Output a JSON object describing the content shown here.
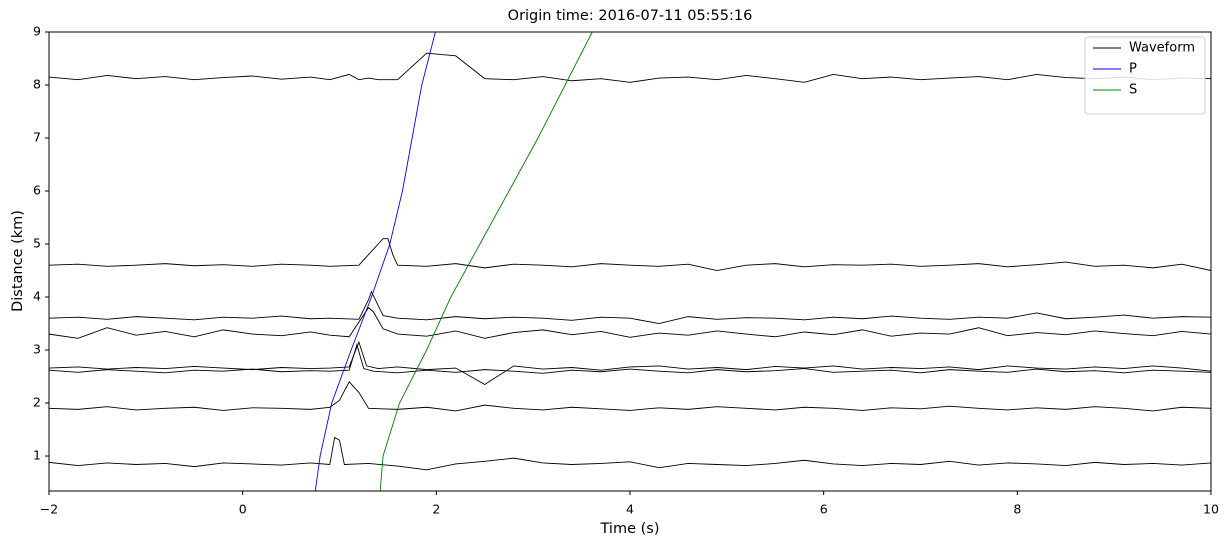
{
  "chart_data": {
    "type": "line",
    "title": "Origin time: 2016-07-11 05:55:16",
    "xlabel": "Time (s)",
    "ylabel": "Distance (km)",
    "xlim": [
      -2,
      10
    ],
    "ylim": [
      0.34,
      9
    ],
    "xticks": [
      {
        "value": -2,
        "label": "−2"
      },
      0,
      2,
      4,
      6,
      8,
      10
    ],
    "yticks": [
      1,
      2,
      3,
      4,
      5,
      6,
      7,
      8,
      9
    ],
    "grid": false,
    "legend": "upper right",
    "series": [
      {
        "name": "Waveform",
        "color": "#000000",
        "traces": [
          {
            "x": [
              -2,
              -1.7,
              -1.4,
              -1.1,
              -0.8,
              -0.5,
              -0.2,
              0.1,
              0.4,
              0.7,
              0.9,
              0.95,
              1.0,
              1.05,
              1.3,
              1.6,
              1.9,
              2.2,
              2.5,
              2.8,
              3.1,
              3.4,
              3.7,
              4.0,
              4.3,
              4.6,
              4.9,
              5.2,
              5.5,
              5.8,
              6.1,
              6.4,
              6.7,
              7.0,
              7.3,
              7.6,
              7.9,
              8.2,
              8.5,
              8.8,
              9.1,
              9.4,
              9.7,
              10
            ],
            "values": [
              0.88,
              0.82,
              0.87,
              0.84,
              0.86,
              0.8,
              0.87,
              0.85,
              0.83,
              0.87,
              0.84,
              1.35,
              1.3,
              0.84,
              0.86,
              0.81,
              0.74,
              0.85,
              0.9,
              0.96,
              0.87,
              0.84,
              0.86,
              0.89,
              0.78,
              0.86,
              0.84,
              0.82,
              0.86,
              0.92,
              0.85,
              0.82,
              0.86,
              0.84,
              0.9,
              0.83,
              0.87,
              0.85,
              0.82,
              0.88,
              0.84,
              0.86,
              0.83,
              0.87
            ]
          },
          {
            "x": [
              -2,
              -1.7,
              -1.4,
              -1.1,
              -0.8,
              -0.5,
              -0.2,
              0.1,
              0.4,
              0.7,
              0.9,
              1.0,
              1.1,
              1.2,
              1.3,
              1.6,
              1.9,
              2.2,
              2.5,
              2.8,
              3.1,
              3.4,
              3.7,
              4.0,
              4.3,
              4.6,
              4.9,
              5.2,
              5.5,
              5.8,
              6.1,
              6.4,
              6.7,
              7.0,
              7.3,
              7.6,
              7.9,
              8.2,
              8.5,
              8.8,
              9.1,
              9.4,
              9.7,
              10
            ],
            "values": [
              1.9,
              1.88,
              1.93,
              1.87,
              1.9,
              1.92,
              1.86,
              1.91,
              1.9,
              1.88,
              1.92,
              2.05,
              2.4,
              2.2,
              1.9,
              1.88,
              1.92,
              1.85,
              1.96,
              1.9,
              1.87,
              1.92,
              1.89,
              1.86,
              1.91,
              1.88,
              1.93,
              1.9,
              1.87,
              1.92,
              1.9,
              1.86,
              1.91,
              1.89,
              1.94,
              1.9,
              1.87,
              1.91,
              1.88,
              1.93,
              1.9,
              1.85,
              1.92,
              1.9
            ]
          },
          {
            "x": [
              -2,
              -1.7,
              -1.4,
              -1.1,
              -0.8,
              -0.5,
              -0.2,
              0.1,
              0.4,
              0.7,
              0.9,
              1.1,
              1.18,
              1.25,
              1.35,
              1.6,
              1.9,
              2.2,
              2.5,
              2.8,
              3.1,
              3.4,
              3.7,
              4.0,
              4.3,
              4.6,
              4.9,
              5.2,
              5.5,
              5.8,
              6.1,
              6.4,
              6.7,
              7.0,
              7.3,
              7.6,
              7.9,
              8.2,
              8.5,
              8.8,
              9.1,
              9.4,
              9.7,
              10
            ],
            "values": [
              2.62,
              2.58,
              2.63,
              2.6,
              2.57,
              2.62,
              2.6,
              2.64,
              2.59,
              2.61,
              2.6,
              2.62,
              3.1,
              2.65,
              2.6,
              2.57,
              2.62,
              2.58,
              2.63,
              2.6,
              2.56,
              2.62,
              2.59,
              2.64,
              2.6,
              2.57,
              2.63,
              2.59,
              2.61,
              2.65,
              2.58,
              2.6,
              2.62,
              2.57,
              2.63,
              2.6,
              2.58,
              2.64,
              2.59,
              2.61,
              2.57,
              2.62,
              2.6,
              2.58
            ]
          },
          {
            "x": [
              -2,
              -1.7,
              -1.4,
              -1.1,
              -0.8,
              -0.5,
              -0.2,
              0.1,
              0.4,
              0.7,
              0.9,
              1.1,
              1.2,
              1.28,
              1.4,
              1.6,
              1.9,
              2.2,
              2.5,
              2.8,
              3.1,
              3.4,
              3.7,
              4.0,
              4.3,
              4.6,
              4.9,
              5.2,
              5.5,
              5.8,
              6.1,
              6.4,
              6.7,
              7.0,
              7.3,
              7.6,
              7.9,
              8.2,
              8.5,
              8.8,
              9.1,
              9.4,
              9.7,
              10
            ],
            "values": [
              2.66,
              2.68,
              2.64,
              2.67,
              2.65,
              2.69,
              2.66,
              2.63,
              2.67,
              2.65,
              2.66,
              2.68,
              3.15,
              2.7,
              2.65,
              2.68,
              2.63,
              2.66,
              2.35,
              2.7,
              2.64,
              2.67,
              2.62,
              2.68,
              2.7,
              2.64,
              2.67,
              2.63,
              2.69,
              2.66,
              2.7,
              2.64,
              2.67,
              2.65,
              2.68,
              2.63,
              2.7,
              2.66,
              2.64,
              2.68,
              2.65,
              2.7,
              2.66,
              2.6
            ]
          },
          {
            "x": [
              -2,
              -1.7,
              -1.4,
              -1.1,
              -0.8,
              -0.5,
              -0.2,
              0.1,
              0.4,
              0.7,
              0.9,
              1.1,
              1.3,
              1.35,
              1.45,
              1.6,
              1.9,
              2.2,
              2.5,
              2.8,
              3.1,
              3.4,
              3.7,
              4.0,
              4.3,
              4.6,
              4.9,
              5.2,
              5.5,
              5.8,
              6.1,
              6.4,
              6.7,
              7.0,
              7.3,
              7.6,
              7.9,
              8.2,
              8.5,
              8.8,
              9.1,
              9.4,
              9.7,
              10
            ],
            "values": [
              3.3,
              3.22,
              3.42,
              3.28,
              3.35,
              3.25,
              3.38,
              3.3,
              3.27,
              3.34,
              3.28,
              3.25,
              3.8,
              3.72,
              3.4,
              3.3,
              3.26,
              3.36,
              3.22,
              3.33,
              3.38,
              3.29,
              3.35,
              3.24,
              3.32,
              3.28,
              3.36,
              3.3,
              3.25,
              3.34,
              3.29,
              3.38,
              3.26,
              3.32,
              3.3,
              3.42,
              3.27,
              3.33,
              3.29,
              3.36,
              3.31,
              3.27,
              3.35,
              3.3
            ]
          },
          {
            "x": [
              -2,
              -1.7,
              -1.4,
              -1.1,
              -0.8,
              -0.5,
              -0.2,
              0.1,
              0.4,
              0.7,
              0.9,
              1.2,
              1.3,
              1.33,
              1.45,
              1.6,
              1.9,
              2.2,
              2.5,
              2.8,
              3.1,
              3.4,
              3.7,
              4.0,
              4.3,
              4.6,
              4.9,
              5.2,
              5.5,
              5.8,
              6.1,
              6.4,
              6.7,
              7.0,
              7.3,
              7.6,
              7.9,
              8.2,
              8.5,
              8.8,
              9.1,
              9.4,
              9.7,
              10
            ],
            "values": [
              3.6,
              3.62,
              3.58,
              3.63,
              3.6,
              3.57,
              3.62,
              3.6,
              3.64,
              3.59,
              3.6,
              3.58,
              3.95,
              4.1,
              3.65,
              3.6,
              3.57,
              3.63,
              3.59,
              3.62,
              3.6,
              3.56,
              3.62,
              3.6,
              3.5,
              3.63,
              3.58,
              3.61,
              3.6,
              3.57,
              3.62,
              3.59,
              3.64,
              3.6,
              3.58,
              3.62,
              3.6,
              3.7,
              3.59,
              3.62,
              3.66,
              3.6,
              3.63,
              3.62
            ]
          },
          {
            "x": [
              -2,
              -1.7,
              -1.4,
              -1.1,
              -0.8,
              -0.5,
              -0.2,
              0.1,
              0.4,
              0.7,
              0.9,
              1.2,
              1.45,
              1.5,
              1.55,
              1.6,
              1.9,
              2.2,
              2.5,
              2.8,
              3.1,
              3.4,
              3.7,
              4.0,
              4.3,
              4.6,
              4.9,
              5.2,
              5.5,
              5.8,
              6.1,
              6.4,
              6.7,
              7.0,
              7.3,
              7.6,
              7.9,
              8.2,
              8.5,
              8.8,
              9.1,
              9.4,
              9.7,
              10
            ],
            "values": [
              4.6,
              4.62,
              4.58,
              4.6,
              4.63,
              4.59,
              4.61,
              4.58,
              4.62,
              4.6,
              4.58,
              4.6,
              5.1,
              5.1,
              4.8,
              4.6,
              4.58,
              4.63,
              4.55,
              4.62,
              4.6,
              4.57,
              4.63,
              4.6,
              4.58,
              4.62,
              4.5,
              4.6,
              4.63,
              4.57,
              4.61,
              4.6,
              4.62,
              4.58,
              4.6,
              4.63,
              4.57,
              4.61,
              4.66,
              4.58,
              4.6,
              4.55,
              4.62,
              4.5
            ]
          },
          {
            "x": [
              -2,
              -1.7,
              -1.4,
              -1.1,
              -0.8,
              -0.5,
              -0.2,
              0.1,
              0.4,
              0.7,
              0.9,
              1.1,
              1.2,
              1.3,
              1.4,
              1.6,
              1.9,
              2.2,
              2.5,
              2.8,
              3.1,
              3.4,
              3.7,
              4.0,
              4.3,
              4.6,
              4.9,
              5.2,
              5.5,
              5.8,
              6.1,
              6.4,
              6.7,
              7.0,
              7.3,
              7.6,
              7.9,
              8.2,
              8.5,
              8.8,
              9.1,
              9.4,
              9.7,
              10
            ],
            "values": [
              8.15,
              8.1,
              8.18,
              8.12,
              8.16,
              8.1,
              8.14,
              8.17,
              8.11,
              8.15,
              8.1,
              8.2,
              8.1,
              8.13,
              8.1,
              8.1,
              8.6,
              8.55,
              8.12,
              8.1,
              8.16,
              8.08,
              8.12,
              8.05,
              8.13,
              8.15,
              8.1,
              8.18,
              8.12,
              8.05,
              8.2,
              8.12,
              8.15,
              8.1,
              8.13,
              8.16,
              8.1,
              8.2,
              8.14,
              8.12,
              8.15,
              8.1,
              8.13,
              8.12
            ]
          }
        ]
      },
      {
        "name": "P",
        "color": "#0000ff",
        "x": [
          0.75,
          0.8,
          0.92,
          1.12,
          1.33,
          1.52,
          1.65,
          1.75,
          1.85,
          1.99
        ],
        "values": [
          0.34,
          1,
          2,
          3,
          4,
          5,
          6,
          7,
          8,
          9
        ]
      },
      {
        "name": "S",
        "color": "#008000",
        "x": [
          1.42,
          1.45,
          1.62,
          1.9,
          2.15,
          2.45,
          2.75,
          3.05,
          3.33,
          3.61
        ],
        "values": [
          0.34,
          1,
          2,
          3,
          4,
          5,
          6,
          7,
          8,
          9
        ]
      }
    ]
  }
}
